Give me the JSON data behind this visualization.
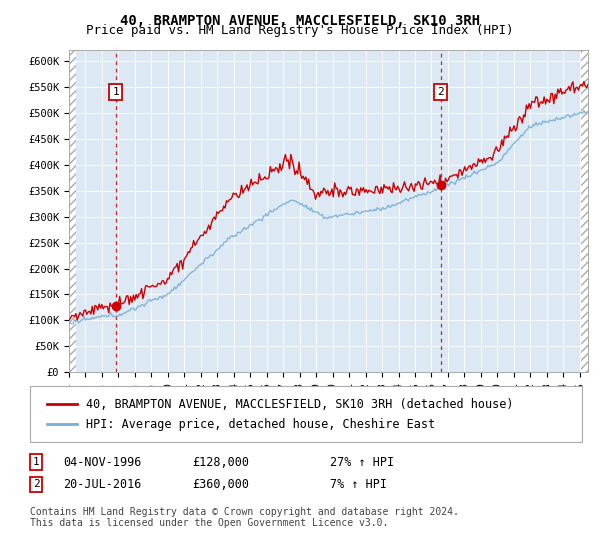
{
  "title": "40, BRAMPTON AVENUE, MACCLESFIELD, SK10 3RH",
  "subtitle": "Price paid vs. HM Land Registry's House Price Index (HPI)",
  "ylim": [
    0,
    620000
  ],
  "yticks": [
    0,
    50000,
    100000,
    150000,
    200000,
    250000,
    300000,
    350000,
    400000,
    450000,
    500000,
    550000,
    600000
  ],
  "ytick_labels": [
    "£0",
    "£50K",
    "£100K",
    "£150K",
    "£200K",
    "£250K",
    "£300K",
    "£350K",
    "£400K",
    "£450K",
    "£500K",
    "£550K",
    "£600K"
  ],
  "xlim_start": 1994.0,
  "xlim_end": 2025.5,
  "plot_bg_color": "#dce9f5",
  "red_line_color": "#cc0000",
  "blue_line_color": "#7aaed6",
  "transaction1_year": 1996.84,
  "transaction1_price": 128000,
  "transaction2_year": 2016.55,
  "transaction2_price": 360000,
  "legend_line1": "40, BRAMPTON AVENUE, MACCLESFIELD, SK10 3RH (detached house)",
  "legend_line2": "HPI: Average price, detached house, Cheshire East",
  "note1_date": "04-NOV-1996",
  "note1_price": "£128,000",
  "note1_hpi": "27% ↑ HPI",
  "note2_date": "20-JUL-2016",
  "note2_price": "£360,000",
  "note2_hpi": "7% ↑ HPI",
  "footer": "Contains HM Land Registry data © Crown copyright and database right 2024.\nThis data is licensed under the Open Government Licence v3.0.",
  "title_fontsize": 10,
  "subtitle_fontsize": 9,
  "tick_fontsize": 7.5,
  "legend_fontsize": 8.5,
  "note_fontsize": 8.5,
  "footer_fontsize": 7
}
